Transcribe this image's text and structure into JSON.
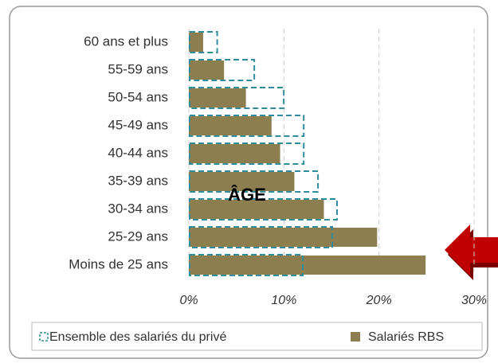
{
  "chart_data": {
    "type": "hbar",
    "categories": [
      "60 ans et plus",
      "55-59 ans",
      "50-54 ans",
      "45-49 ans",
      "40-44 ans",
      "35-39 ans",
      "30-34 ans",
      "25-29 ans",
      "Moins de 25 ans"
    ],
    "series": [
      {
        "name": "Ensemble des salariés du privé",
        "color": "#2f8c9c",
        "style": "dashed",
        "values": [
          2.9,
          6.8,
          9.9,
          12.0,
          12.0,
          13.5,
          15.5,
          15.0,
          11.9
        ]
      },
      {
        "name": "Salariés RBS",
        "color": "#8c7e4f",
        "style": "filled",
        "values": [
          1.5,
          3.7,
          6.0,
          8.7,
          9.6,
          11.1,
          14.2,
          19.8,
          24.9
        ]
      }
    ],
    "xlim": [
      0,
      30
    ],
    "xticks": [
      {
        "value": 0,
        "label": "0%"
      },
      {
        "value": 10,
        "label": "10%"
      },
      {
        "value": 20,
        "label": "20%"
      },
      {
        "value": 30,
        "label": "30%"
      }
    ],
    "grid": true,
    "annotation": "ÂGE"
  }
}
